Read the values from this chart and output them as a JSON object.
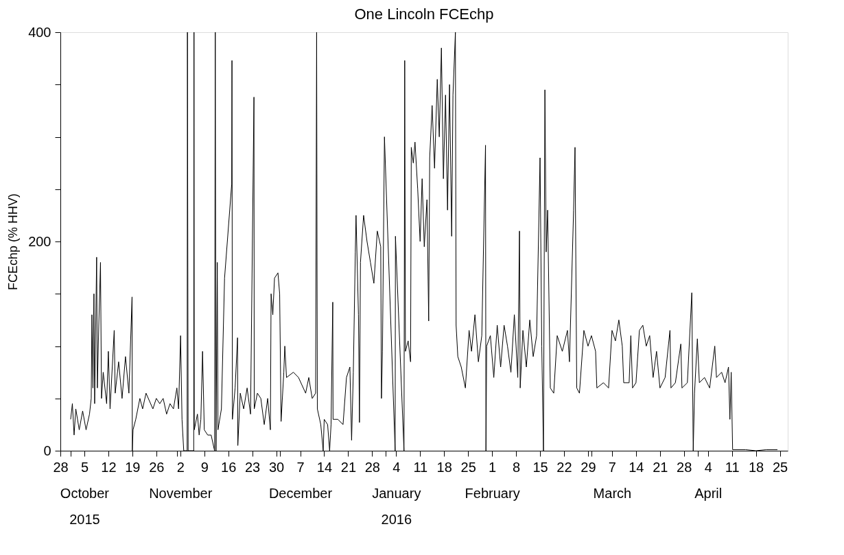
{
  "chart_data": {
    "type": "line",
    "title": "One Lincoln FCEchp",
    "ylabel": "FCEchp (% HHV)",
    "grid": false,
    "line_style": "solid",
    "xlim": [
      "2015-09-28",
      "2016-04-27T07:00"
    ],
    "ylim": [
      0,
      400
    ],
    "yticks": [
      0,
      {
        "value": 50,
        "label": null
      },
      {
        "value": 100,
        "label": null
      },
      {
        "value": 150,
        "label": null
      },
      200,
      {
        "value": 250,
        "label": null
      },
      {
        "value": 300,
        "label": null
      },
      {
        "value": 350,
        "label": null
      },
      400
    ],
    "xticks": [
      {
        "value": "2015-09-28",
        "label": "28"
      },
      {
        "value": "2015-10-01",
        "label": null
      },
      {
        "value": "2015-10-05",
        "label": "5\nOctober\n2015"
      },
      {
        "value": "2015-10-12",
        "label": "12"
      },
      {
        "value": "2015-10-19",
        "label": "19"
      },
      {
        "value": "2015-10-26",
        "label": "26"
      },
      {
        "value": "2015-11-01",
        "label": null
      },
      {
        "value": "2015-11-02",
        "label": "2\nNovember"
      },
      {
        "value": "2015-11-09",
        "label": "9"
      },
      {
        "value": "2015-11-16",
        "label": "16"
      },
      {
        "value": "2015-11-23",
        "label": "23"
      },
      {
        "value": "2015-11-30",
        "label": "30"
      },
      {
        "value": "2015-12-01",
        "label": null
      },
      {
        "value": "2015-12-07",
        "label": "7\nDecember"
      },
      {
        "value": "2015-12-14",
        "label": "14"
      },
      {
        "value": "2015-12-21",
        "label": "21"
      },
      {
        "value": "2015-12-28",
        "label": "28"
      },
      {
        "value": "2016-01-01",
        "label": null
      },
      {
        "value": "2016-01-04",
        "label": "4\nJanuary\n2016"
      },
      {
        "value": "2016-01-11",
        "label": "11"
      },
      {
        "value": "2016-01-18",
        "label": "18"
      },
      {
        "value": "2016-01-25",
        "label": "25"
      },
      {
        "value": "2016-02-01",
        "label": "1\nFebruary"
      },
      {
        "value": "2016-02-08",
        "label": "8"
      },
      {
        "value": "2016-02-15",
        "label": "15"
      },
      {
        "value": "2016-02-22",
        "label": "22"
      },
      {
        "value": "2016-02-29",
        "label": "29"
      },
      {
        "value": "2016-03-01",
        "label": null
      },
      {
        "value": "2016-03-07",
        "label": "7\nMarch"
      },
      {
        "value": "2016-03-14",
        "label": "14"
      },
      {
        "value": "2016-03-21",
        "label": "21"
      },
      {
        "value": "2016-03-28",
        "label": "28"
      },
      {
        "value": "2016-04-01",
        "label": null
      },
      {
        "value": "2016-04-04",
        "label": "4\nApril"
      },
      {
        "value": "2016-04-11",
        "label": "11"
      },
      {
        "value": "2016-04-18",
        "label": "18"
      },
      {
        "value": "2016-04-25",
        "label": "25"
      }
    ],
    "x": [
      "2015-10-01T00:00",
      "2015-10-01T12:00",
      "2015-10-02T00:00",
      "2015-10-02T12:00",
      "2015-10-03T12:00",
      "2015-10-04T12:00",
      "2015-10-05T12:00",
      "2015-10-06T12:00",
      "2015-10-07T00:00",
      "2015-10-07T05:00",
      "2015-10-07T12:00",
      "2015-10-07T19:00",
      "2015-10-08T00:00",
      "2015-10-08T14:00",
      "2015-10-08T19:00",
      "2015-10-09T05:00",
      "2015-10-09T17:00",
      "2015-10-10T00:00",
      "2015-10-10T12:00",
      "2015-10-11T12:00",
      "2015-10-12T00:00",
      "2015-10-12T12:00",
      "2015-10-13T17:00",
      "2015-10-14T00:00",
      "2015-10-15T00:00",
      "2015-10-16T00:00",
      "2015-10-17T00:00",
      "2015-10-18T00:00",
      "2015-10-18T22:00",
      "2015-10-19T00:00",
      "2015-10-19T05:00",
      "2015-10-20T00:00",
      "2015-10-21T05:00",
      "2015-10-22T00:00",
      "2015-10-23T00:00",
      "2015-10-25T00:00",
      "2015-10-26T00:00",
      "2015-10-27T00:00",
      "2015-10-28T00:00",
      "2015-10-29T00:00",
      "2015-10-30T00:00",
      "2015-10-31T00:00",
      "2015-11-01T00:00",
      "2015-11-01T12:00",
      "2015-11-02T02:00",
      "2015-11-02T12:00",
      "2015-11-03T00:00",
      "2015-11-04T00:00",
      "2015-11-04T02:00",
      "2015-11-04T07:00",
      "2015-11-05T22:00",
      "2015-11-06T00:00",
      "2015-11-06T02:00",
      "2015-11-07T00:00",
      "2015-11-07T12:00",
      "2015-11-08T00:00",
      "2015-11-08T12:00",
      "2015-11-09T00:00",
      "2015-11-10T00:00",
      "2015-11-11T00:00",
      "2015-11-12T00:00",
      "2015-11-12T05:00",
      "2015-11-12T10:00",
      "2015-11-12T19:00",
      "2015-11-13T00:00",
      "2015-11-14T00:00",
      "2015-11-14T22:00",
      "2015-11-17T00:00",
      "2015-11-17T02:00",
      "2015-11-17T05:00",
      "2015-11-18T00:00",
      "2015-11-18T17:00",
      "2015-11-18T19:00",
      "2015-11-19T12:00",
      "2015-11-20T12:00",
      "2015-11-21T12:00",
      "2015-11-22T12:00",
      "2015-11-23T12:00",
      "2015-11-23T14:00",
      "2015-11-24T12:00",
      "2015-11-25T12:00",
      "2015-11-26T12:00",
      "2015-11-27T12:00",
      "2015-11-28T07:00",
      "2015-11-28T12:00",
      "2015-11-29T00:00",
      "2015-11-29T12:00",
      "2015-11-30T12:00",
      "2015-12-01T00:00",
      "2015-12-01T10:00",
      "2015-12-02T05:00",
      "2015-12-02T12:00",
      "2015-12-03T00:00",
      "2015-12-05T00:00",
      "2015-12-06T12:00",
      "2015-12-08T14:00",
      "2015-12-09T12:00",
      "2015-12-10T12:00",
      "2015-12-11T12:00",
      "2015-12-11T19:00",
      "2015-12-12T00:00",
      "2015-12-13T00:00",
      "2015-12-13T17:00",
      "2015-12-14T00:00",
      "2015-12-15T00:00",
      "2015-12-15T14:00",
      "2015-12-16T00:00",
      "2015-12-16T12:00",
      "2015-12-16T14:00",
      "2015-12-18T00:00",
      "2015-12-19T12:00",
      "2015-12-20T12:00",
      "2015-12-21T12:00",
      "2015-12-22T00:00",
      "2015-12-22T12:00",
      "2015-12-23T02:00",
      "2015-12-23T07:00",
      "2015-12-24T00:00",
      "2015-12-24T07:00",
      "2015-12-24T14:00",
      "2015-12-25T12:00",
      "2015-12-26T12:00",
      "2015-12-27T12:00",
      "2015-12-28T12:00",
      "2015-12-29T12:00",
      "2015-12-30T12:00",
      "2015-12-30T17:00",
      "2015-12-31T00:00",
      "2015-12-31T14:00",
      "2016-01-03T17:00",
      "2016-01-03T19:00",
      "2016-01-06T07:00",
      "2016-01-06T12:00",
      "2016-01-06T17:00",
      "2016-01-07T12:00",
      "2016-01-08T05:00",
      "2016-01-08T10:00",
      "2016-01-09T00:00",
      "2016-01-09T12:00",
      "2016-01-10T07:00",
      "2016-01-11T00:00",
      "2016-01-11T14:00",
      "2016-01-12T05:00",
      "2016-01-13T00:00",
      "2016-01-13T12:00",
      "2016-01-13T19:00",
      "2016-01-14T12:00",
      "2016-01-15T05:00",
      "2016-01-16T00:00",
      "2016-01-16T14:00",
      "2016-01-17T05:00",
      "2016-01-17T19:00",
      "2016-01-18T10:00",
      "2016-01-19T00:00",
      "2016-01-19T14:00",
      "2016-01-20T05:00",
      "2016-01-20T14:00",
      "2016-01-21T07:00",
      "2016-01-21T12:00",
      "2016-01-22T00:00",
      "2016-01-23T00:00",
      "2016-01-24T05:00",
      "2016-01-25T07:00",
      "2016-01-26T00:00",
      "2016-01-27T00:00",
      "2016-01-28T00:00",
      "2016-01-29T00:00",
      "2016-01-30T02:00",
      "2016-01-30T05:00",
      "2016-01-30T10:00",
      "2016-01-31T12:00",
      "2016-02-01T12:00",
      "2016-02-02T12:00",
      "2016-02-03T12:00",
      "2016-02-04T12:00",
      "2016-02-05T12:00",
      "2016-02-06T12:00",
      "2016-02-07T12:00",
      "2016-02-08T12:00",
      "2016-02-09T00:00",
      "2016-02-09T05:00",
      "2016-02-10T00:00",
      "2016-02-11T00:00",
      "2016-02-12T00:00",
      "2016-02-13T00:00",
      "2016-02-14T00:00",
      "2016-02-15T00:00",
      "2016-02-15T12:00",
      "2016-02-16T00:00",
      "2016-02-16T10:00",
      "2016-02-16T19:00",
      "2016-02-17T05:00",
      "2016-02-18T00:00",
      "2016-02-19T00:00",
      "2016-02-20T00:00",
      "2016-02-21T12:00",
      "2016-02-23T00:00",
      "2016-02-23T14:00",
      "2016-02-24T19:00",
      "2016-02-25T05:00",
      "2016-02-25T17:00",
      "2016-02-26T12:00",
      "2016-02-27T19:00",
      "2016-02-29T00:00",
      "2016-03-01T00:00",
      "2016-03-02T05:00",
      "2016-03-02T14:00",
      "2016-03-04T12:00",
      "2016-03-06T00:00",
      "2016-03-07T00:00",
      "2016-03-08T00:00",
      "2016-03-09T00:00",
      "2016-03-10T00:00",
      "2016-03-10T10:00",
      "2016-03-12T00:00",
      "2016-03-12T12:00",
      "2016-03-13T00:00",
      "2016-03-14T00:00",
      "2016-03-15T00:00",
      "2016-03-16T00:00",
      "2016-03-17T00:00",
      "2016-03-18T00:00",
      "2016-03-19T00:00",
      "2016-03-20T00:00",
      "2016-03-21T00:00",
      "2016-03-22T12:00",
      "2016-03-23T22:00",
      "2016-03-24T05:00",
      "2016-03-25T12:00",
      "2016-03-27T02:00",
      "2016-03-27T10:00",
      "2016-03-29T00:00",
      "2016-03-30T07:00",
      "2016-03-30T17:00",
      "2016-03-31T02:00",
      "2016-03-31T22:00",
      "2016-04-01T12:00",
      "2016-04-03T00:00",
      "2016-04-04T12:00",
      "2016-04-06T00:00",
      "2016-04-06T12:00",
      "2016-04-08T00:00",
      "2016-04-09T00:00",
      "2016-04-10T00:00",
      "2016-04-10T10:00",
      "2016-04-10T19:00",
      "2016-04-11T05:00",
      "2016-04-15T00:00",
      "2016-04-18T00:00",
      "2016-04-21T00:00",
      "2016-04-24T07:00"
    ],
    "series": [
      {
        "color": "#000000",
        "values": [
          30,
          45,
          15,
          40,
          20,
          38,
          20,
          35,
          50,
          130,
          60,
          150,
          45,
          185,
          60,
          120,
          180,
          50,
          75,
          45,
          95,
          40,
          115,
          55,
          85,
          50,
          90,
          55,
          147,
          0,
          20,
          30,
          50,
          40,
          55,
          40,
          50,
          45,
          50,
          35,
          45,
          40,
          60,
          40,
          110,
          30,
          0,
          0,
          400,
          0,
          0,
          400,
          20,
          35,
          15,
          30,
          95,
          20,
          15,
          15,
          0,
          400,
          0,
          180,
          20,
          40,
          165,
          255,
          373,
          30,
          60,
          108,
          5,
          55,
          40,
          60,
          35,
          338,
          40,
          55,
          50,
          25,
          50,
          20,
          150,
          130,
          165,
          170,
          150,
          28,
          75,
          100,
          70,
          75,
          70,
          55,
          70,
          50,
          55,
          400,
          40,
          25,
          0,
          30,
          25,
          0,
          25,
          142,
          30,
          30,
          25,
          70,
          80,
          10,
          75,
          190,
          225,
          130,
          27,
          180,
          225,
          200,
          180,
          160,
          210,
          195,
          50,
          95,
          300,
          0,
          205,
          0,
          373,
          95,
          105,
          85,
          290,
          275,
          295,
          250,
          200,
          260,
          195,
          240,
          124,
          280,
          330,
          270,
          355,
          300,
          385,
          260,
          340,
          230,
          350,
          205,
          340,
          400,
          120,
          90,
          80,
          60,
          115,
          95,
          130,
          85,
          110,
          292,
          0,
          100,
          110,
          70,
          120,
          80,
          120,
          100,
          75,
          130,
          70,
          210,
          60,
          115,
          80,
          125,
          90,
          110,
          280,
          100,
          0,
          345,
          190,
          230,
          60,
          55,
          110,
          95,
          115,
          85,
          230,
          290,
          60,
          55,
          115,
          100,
          110,
          95,
          60,
          65,
          60,
          115,
          105,
          125,
          100,
          65,
          65,
          110,
          60,
          65,
          115,
          120,
          100,
          110,
          70,
          95,
          60,
          70,
          115,
          60,
          65,
          102,
          60,
          65,
          151,
          0,
          55,
          107,
          65,
          70,
          60,
          100,
          70,
          75,
          65,
          80,
          30,
          75,
          1,
          1,
          0,
          1,
          1
        ]
      }
    ]
  }
}
